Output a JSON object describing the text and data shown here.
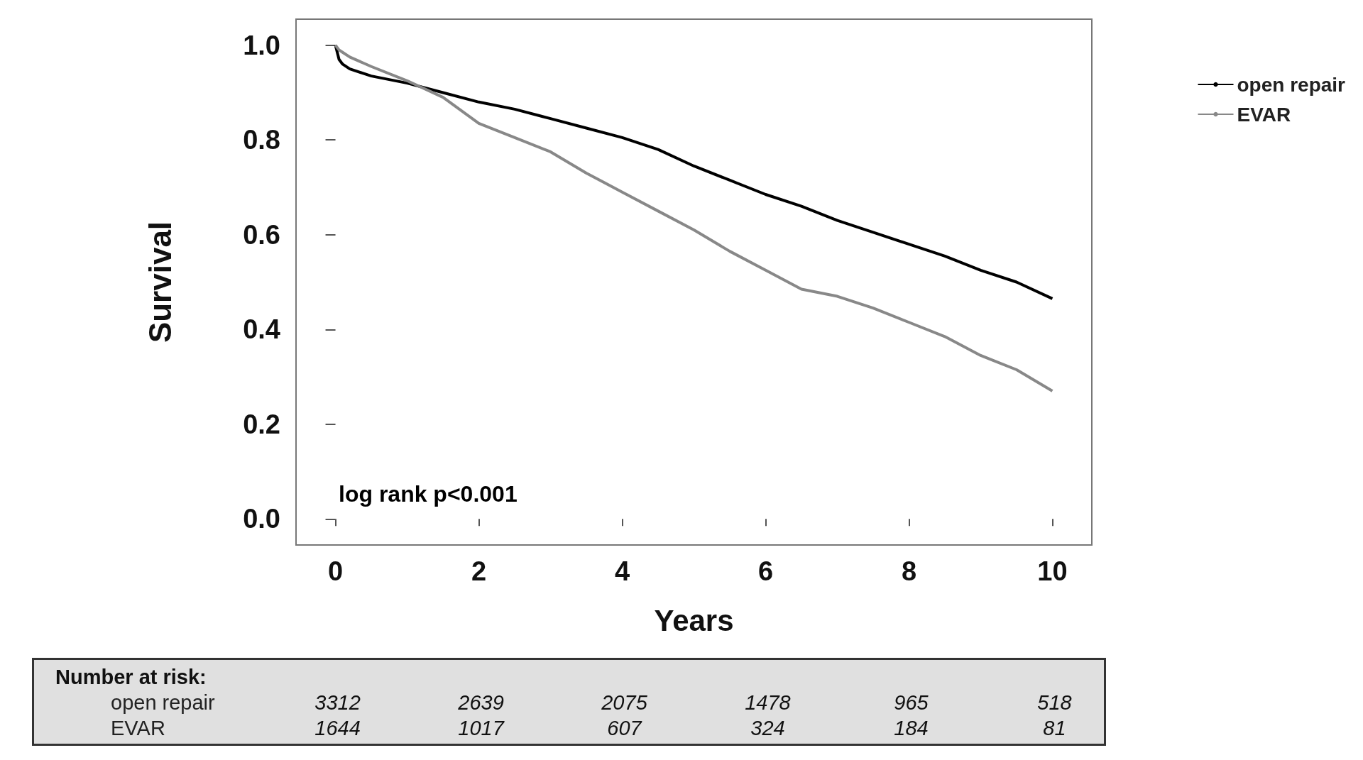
{
  "chart_data": {
    "type": "line",
    "xlabel": "Years",
    "ylabel": "Survival",
    "x": [
      0,
      0.05,
      0.1,
      0.2,
      0.5,
      1,
      1.5,
      2,
      2.5,
      3,
      3.5,
      4,
      4.5,
      5,
      5.5,
      6,
      6.5,
      7,
      7.5,
      8,
      8.5,
      9,
      9.5,
      10
    ],
    "series": [
      {
        "name": "open repair",
        "color": "#000000",
        "values": [
          1.0,
          0.97,
          0.96,
          0.95,
          0.935,
          0.92,
          0.9,
          0.88,
          0.865,
          0.845,
          0.825,
          0.805,
          0.78,
          0.745,
          0.715,
          0.685,
          0.66,
          0.63,
          0.605,
          0.58,
          0.555,
          0.525,
          0.5,
          0.465
        ]
      },
      {
        "name": "EVAR",
        "color": "#888888",
        "values": [
          1.0,
          0.99,
          0.985,
          0.975,
          0.955,
          0.925,
          0.89,
          0.835,
          0.805,
          0.775,
          0.73,
          0.69,
          0.65,
          0.61,
          0.565,
          0.525,
          0.485,
          0.47,
          0.445,
          0.415,
          0.385,
          0.345,
          0.315,
          0.27
        ]
      }
    ],
    "xlim": [
      -0.55,
      10.55
    ],
    "xticks": [
      0,
      2,
      4,
      6,
      8,
      10
    ],
    "ylim": [
      -0.055,
      1.055
    ],
    "yticks": [
      {
        "value": 0,
        "label": "0.0"
      },
      {
        "value": 0.2,
        "label": "0.2"
      },
      {
        "value": 0.4,
        "label": "0.4"
      },
      {
        "value": 0.6,
        "label": "0.6"
      },
      {
        "value": 0.8,
        "label": "0.8"
      },
      {
        "value": 1,
        "label": "1.0"
      }
    ],
    "grid": false,
    "legend": "top right",
    "marker": "none",
    "line_style": "solid",
    "annotations": [
      "log rank p<0.001",
      "Number at risk:",
      "open repair",
      "3312",
      "2639",
      "2075",
      "1478",
      "965",
      "518",
      "EVAR",
      "1644",
      "1017",
      "607",
      "324",
      "184",
      "81"
    ]
  }
}
